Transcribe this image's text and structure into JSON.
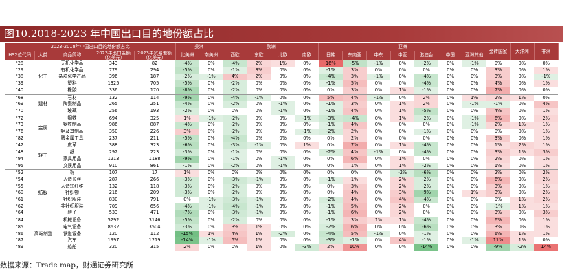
{
  "title": "图10.2018-2023 年中国出口目的地份额占比",
  "header": {
    "span_title": "2023-2018年中国出口目的地份额占比",
    "regions": [
      {
        "label": "美洲",
        "span": 2
      },
      {
        "label": "欧洲",
        "span": 4
      },
      {
        "label": "亚洲",
        "span": 7
      }
    ],
    "columns": [
      "HS2位代码",
      "大类",
      "商品简称",
      "2023年出口金额\n（亿美元）",
      "2023年贸易差额\n（亿美元）",
      "北美洲",
      "南美洲",
      "西欧",
      "东欧",
      "北欧",
      "南欧",
      "日韩",
      "东南亚",
      "中东",
      "中亚",
      "港澳台",
      "中国",
      "亚洲其他",
      "金砖国家",
      "大洋洲",
      "非洲"
    ]
  },
  "groups": [
    {
      "category": "化工",
      "rows": [
        [
          "'28",
          "无机化学品",
          "343",
          "82",
          "-4%",
          "0%",
          "-4%",
          "2%",
          "1%",
          "0%",
          "16%",
          "-5%",
          "-1%",
          "0%",
          "-2%",
          "0%",
          "-1%",
          "0%",
          "0%",
          "0%"
        ],
        [
          "'29",
          "有机化学品",
          "779",
          "294",
          "-5%",
          "0%",
          "-1%",
          "3%",
          "0%",
          "0%",
          "-1%",
          "3%",
          "0%",
          "0%",
          "0%",
          "0%",
          "0%",
          "3%",
          "0%",
          "1%"
        ],
        [
          "'38",
          "杂项化学产品",
          "396",
          "187",
          "-2%",
          "-1%",
          "4%",
          "2%",
          "0%",
          "0%",
          "-4%",
          "3%",
          "-1%",
          "0%",
          "-4%",
          "0%",
          "0%",
          "3%",
          "0%",
          "-1%"
        ],
        [
          "'39",
          "塑料",
          "1325",
          "705",
          "-5%",
          "0%",
          "-2%",
          "0%",
          "0%",
          "0%",
          "-1%",
          "5%",
          "0%",
          "0%",
          "-4%",
          "0%",
          "0%",
          "4%",
          "0%",
          "1%"
        ],
        [
          "'40",
          "橡胶",
          "336",
          "170",
          "-8%",
          "0%",
          "-2%",
          "0%",
          "0%",
          "0%",
          "0%",
          "3%",
          "0%",
          "1%",
          "-1%",
          "0%",
          "0%",
          "7%",
          "0%",
          "0%"
        ]
      ]
    },
    {
      "category": "建材",
      "rows": [
        [
          "'68",
          "石材",
          "132",
          "114",
          "-9%",
          "0%",
          "-4%",
          "-1%",
          "0%",
          "0%",
          "5%",
          "4%",
          "-1%",
          "0%",
          "2%",
          "0%",
          "1%",
          "2%",
          "1%",
          "0%"
        ],
        [
          "'69",
          "陶瓷制品",
          "265",
          "251",
          "-4%",
          "0%",
          "-2%",
          "0%",
          "-1%",
          "0%",
          "-1%",
          "3%",
          "0%",
          "1%",
          "2%",
          "0%",
          "-1%",
          "-1%",
          "0%",
          "4%"
        ],
        [
          "'70",
          "玻璃",
          "256",
          "193",
          "-2%",
          "0%",
          "0%",
          "0%",
          "-1%",
          "0%",
          "-1%",
          "4%",
          "0%",
          "1%",
          "-5%",
          "0%",
          "0%",
          "4%",
          "0%",
          "1%"
        ]
      ]
    },
    {
      "category": "金属",
      "rows": [
        [
          "'72",
          "钢铁",
          "694",
          "325",
          "1%",
          "-1%",
          "-2%",
          "0%",
          "0%",
          "-1%",
          "-3%",
          "-4%",
          "0%",
          "1%",
          "-2%",
          "0%",
          "-1%",
          "6%",
          "0%",
          "2%"
        ],
        [
          "'73",
          "钢铁制品",
          "986",
          "887",
          "-4%",
          "0%",
          "-2%",
          "0%",
          "0%",
          "0%",
          "-1%",
          "4%",
          "0%",
          "0%",
          "0%",
          "0%",
          "-1%",
          "2%",
          "1%",
          "1%"
        ],
        [
          "'76",
          "铝及其制品",
          "350",
          "226",
          "3%",
          "0%",
          "-2%",
          "0%",
          "0%",
          "-1%",
          "-2%",
          "2%",
          "0%",
          "0%",
          "-1%",
          "0%",
          "0%",
          "0%",
          "0%",
          "1%"
        ],
        [
          "'82",
          "贱金属工具",
          "237",
          "211",
          "-5%",
          "0%",
          "-4%",
          "0%",
          "0%",
          "0%",
          "0%",
          "2%",
          "0%",
          "0%",
          "0%",
          "0%",
          "0%",
          "3%",
          "0%",
          "1%"
        ]
      ]
    },
    {
      "category": "轻工",
      "rows": [
        [
          "'42",
          "皮革",
          "388",
          "323",
          "-6%",
          "0%",
          "-3%",
          "-1%",
          "0%",
          "1%",
          "0%",
          "7%",
          "0%",
          "1%",
          "-4%",
          "0%",
          "0%",
          "1%",
          "2%",
          "1%"
        ],
        [
          "'48",
          "纸",
          "292",
          "223",
          "-3%",
          "0%",
          "-1%",
          "0%",
          "0%",
          "0%",
          "-2%",
          "4%",
          "-1%",
          "0%",
          "-4%",
          "0%",
          "0%",
          "3%",
          "1%",
          "3%"
        ],
        [
          "'94",
          "家具用品",
          "1213",
          "1188",
          "-9%",
          "0%",
          "-1%",
          "0%",
          "-1%",
          "0%",
          "0%",
          "6%",
          "0%",
          "1%",
          "0%",
          "0%",
          "0%",
          "2%",
          "0%",
          "1%"
        ],
        [
          "'95",
          "文娱用品",
          "910",
          "861",
          "-1%",
          "0%",
          "-2%",
          "0%",
          "-1%",
          "0%",
          "0%",
          "1%",
          "0%",
          "1%",
          "-2%",
          "0%",
          "0%",
          "1%",
          "0%",
          "1%"
        ]
      ]
    },
    {
      "category": "纺服",
      "rows": [
        [
          "'52",
          "棉",
          "107",
          "17",
          "1%",
          "0%",
          "0%",
          "0%",
          "0%",
          "0%",
          "0%",
          "0%",
          "0%",
          "-2%",
          "-6%",
          "0%",
          "0%",
          "2%",
          "0%",
          "2%"
        ],
        [
          "'54",
          "人造长丝",
          "287",
          "266",
          "-3%",
          "0%",
          "-3%",
          "-1%",
          "0%",
          "0%",
          "-1%",
          "1%",
          "0%",
          "2%",
          "-2%",
          "0%",
          "0%",
          "6%",
          "0%",
          "2%"
        ],
        [
          "'55",
          "人造短纤维",
          "132",
          "118",
          "-3%",
          "0%",
          "-2%",
          "0%",
          "0%",
          "0%",
          "0%",
          "3%",
          "0%",
          "2%",
          "-2%",
          "0%",
          "0%",
          "3%",
          "0%",
          "1%"
        ],
        [
          "'60",
          "针织物",
          "216",
          "209",
          "-3%",
          "0%",
          "-2%",
          "0%",
          "0%",
          "0%",
          "0%",
          "4%",
          "0%",
          "3%",
          "-9%",
          "0%",
          "1%",
          "3%",
          "0%",
          "2%"
        ],
        [
          "'61",
          "针织服装",
          "830",
          "791",
          "0%",
          "-1%",
          "-3%",
          "-1%",
          "0%",
          "0%",
          "-2%",
          "4%",
          "0%",
          "4%",
          "-4%",
          "0%",
          "0%",
          "0%",
          "1%",
          "2%"
        ],
        [
          "'62",
          "非针织服装",
          "709",
          "656",
          "-4%",
          "-1%",
          "-4%",
          "-1%",
          "0%",
          "0%",
          "-1%",
          "5%",
          "0%",
          "2%",
          "0%",
          "0%",
          "0%",
          "-1%",
          "1%",
          "1%"
        ],
        [
          "'64",
          "鞋子",
          "533",
          "471",
          "-7%",
          "0%",
          "-3%",
          "-1%",
          "0%",
          "0%",
          "-1%",
          "6%",
          "0%",
          "2%",
          "0%",
          "0%",
          "0%",
          "3%",
          "0%",
          "3%"
        ]
      ]
    },
    {
      "category": "高端制造",
      "rows": [
        [
          "'84",
          "机械设备",
          "5292",
          "3146",
          "-5%",
          "0%",
          "-2%",
          "0%",
          "0%",
          "0%",
          "-1%",
          "3%",
          "1%",
          "1%",
          "-4%",
          "0%",
          "0%",
          "6%",
          "0%",
          "1%"
        ],
        [
          "'85",
          "电气设备",
          "8632",
          "3504",
          "-3%",
          "0%",
          "3%",
          "1%",
          "0%",
          "0%",
          "-2%",
          "6%",
          "0%",
          "0%",
          "-6%",
          "0%",
          "0%",
          "3%",
          "0%",
          "1%"
        ],
        [
          "'86",
          "铁道设备",
          "120",
          "112",
          "-15%",
          "1%",
          "4%",
          "1%",
          "-2%",
          "0%",
          "-4%",
          "5%",
          "-1%",
          "0%",
          "-1%",
          "0%",
          "0%",
          "6%",
          "1%",
          "1%"
        ],
        [
          "'87",
          "汽车",
          "1997",
          "1219",
          "-14%",
          "-1%",
          "5%",
          "1%",
          "0%",
          "0%",
          "-3%",
          "-1%",
          "0%",
          "4%",
          "-1%",
          "0%",
          "-1%",
          "11%",
          "1%",
          "0%"
        ],
        [
          "'89",
          "船舶",
          "320",
          "315",
          "2%",
          "0%",
          "0%",
          "1%",
          "0%",
          "-3%",
          "2%",
          "10%",
          "0%",
          "0%",
          "-14%",
          "0%",
          "0%",
          "-9%",
          "-2%",
          "14%"
        ]
      ]
    }
  ],
  "footer": "数据来源：Trade map，财通证券研究所"
}
